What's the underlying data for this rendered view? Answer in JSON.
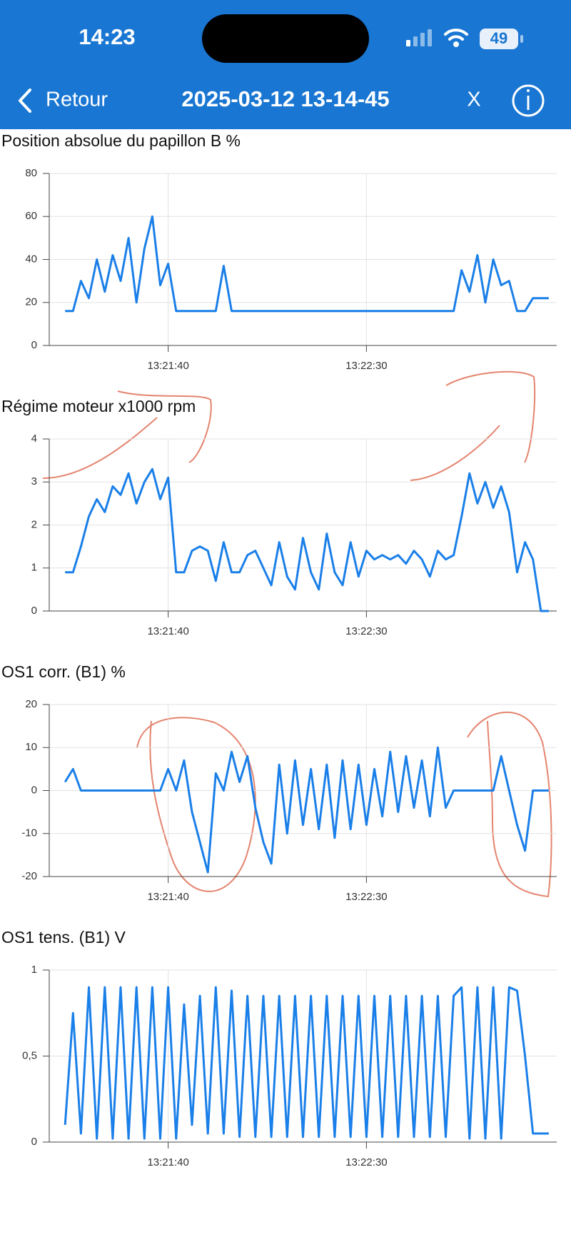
{
  "status_bar": {
    "time": "14:23",
    "battery": "49"
  },
  "nav": {
    "back": "Retour",
    "title": "2025-03-12 13-14-45",
    "close": "X"
  },
  "chart_data": [
    {
      "type": "line",
      "title": "Position absolue du papillon B  %",
      "color": "#1a7fe8",
      "x": [
        "13:21:14",
        "13:21:16",
        "13:21:18",
        "13:21:20",
        "13:21:22",
        "13:21:24",
        "13:21:26",
        "13:21:28",
        "13:21:30",
        "13:21:32",
        "13:21:34",
        "13:21:36",
        "13:21:38",
        "13:21:40",
        "13:21:42",
        "13:21:44",
        "13:21:46",
        "13:21:48",
        "13:21:50",
        "13:21:52",
        "13:21:54",
        "13:21:56",
        "13:21:58",
        "13:22:00",
        "13:22:02",
        "13:22:04",
        "13:22:06",
        "13:22:08",
        "13:22:10",
        "13:22:12",
        "13:22:14",
        "13:22:16",
        "13:22:18",
        "13:22:20",
        "13:22:22",
        "13:22:24",
        "13:22:26",
        "13:22:28",
        "13:22:30",
        "13:22:32",
        "13:22:34",
        "13:22:36",
        "13:22:38",
        "13:22:40",
        "13:22:42",
        "13:22:44",
        "13:22:46",
        "13:22:48",
        "13:22:50",
        "13:22:52",
        "13:22:54",
        "13:22:56",
        "13:22:58",
        "13:23:00",
        "13:23:02",
        "13:23:04",
        "13:23:06",
        "13:23:08",
        "13:23:10",
        "13:23:12",
        "13:23:14",
        "13:23:16"
      ],
      "values": [
        16,
        16,
        30,
        22,
        40,
        25,
        42,
        30,
        50,
        20,
        45,
        60,
        28,
        38,
        16,
        16,
        16,
        16,
        16,
        16,
        37,
        16,
        16,
        16,
        16,
        16,
        16,
        16,
        16,
        16,
        16,
        16,
        16,
        16,
        16,
        16,
        16,
        16,
        16,
        16,
        16,
        16,
        16,
        16,
        16,
        16,
        16,
        16,
        16,
        16,
        35,
        25,
        42,
        20,
        40,
        28,
        30,
        16,
        16,
        22,
        22,
        22
      ],
      "xlim": [
        "13:21:10",
        "13:23:18"
      ],
      "xticks": [
        "13:21:40",
        "13:22:30"
      ],
      "ylim": [
        0,
        80
      ],
      "yticks": [
        0,
        20,
        40,
        60,
        80
      ],
      "grid": true
    },
    {
      "type": "line",
      "title": "Régime moteur x1000  rpm",
      "color": "#1a7fe8",
      "x": [
        "13:21:14",
        "13:21:16",
        "13:21:18",
        "13:21:20",
        "13:21:22",
        "13:21:24",
        "13:21:26",
        "13:21:28",
        "13:21:30",
        "13:21:32",
        "13:21:34",
        "13:21:36",
        "13:21:38",
        "13:21:40",
        "13:21:42",
        "13:21:44",
        "13:21:46",
        "13:21:48",
        "13:21:50",
        "13:21:52",
        "13:21:54",
        "13:21:56",
        "13:21:58",
        "13:22:00",
        "13:22:02",
        "13:22:04",
        "13:22:06",
        "13:22:08",
        "13:22:10",
        "13:22:12",
        "13:22:14",
        "13:22:16",
        "13:22:18",
        "13:22:20",
        "13:22:22",
        "13:22:24",
        "13:22:26",
        "13:22:28",
        "13:22:30",
        "13:22:32",
        "13:22:34",
        "13:22:36",
        "13:22:38",
        "13:22:40",
        "13:22:42",
        "13:22:44",
        "13:22:46",
        "13:22:48",
        "13:22:50",
        "13:22:52",
        "13:22:54",
        "13:22:56",
        "13:22:58",
        "13:23:00",
        "13:23:02",
        "13:23:04",
        "13:23:06",
        "13:23:08",
        "13:23:10",
        "13:23:12",
        "13:23:14",
        "13:23:16"
      ],
      "values": [
        0.9,
        0.9,
        1.5,
        2.2,
        2.6,
        2.3,
        2.9,
        2.7,
        3.2,
        2.5,
        3.0,
        3.3,
        2.6,
        3.1,
        0.9,
        0.9,
        1.4,
        1.5,
        1.4,
        0.7,
        1.6,
        0.9,
        0.9,
        1.3,
        1.4,
        1.0,
        0.6,
        1.6,
        0.8,
        0.5,
        1.7,
        0.9,
        0.5,
        1.8,
        0.9,
        0.6,
        1.6,
        0.8,
        1.4,
        1.2,
        1.3,
        1.2,
        1.3,
        1.1,
        1.4,
        1.2,
        0.8,
        1.4,
        1.2,
        1.3,
        2.2,
        3.2,
        2.5,
        3.0,
        2.4,
        2.9,
        2.3,
        0.9,
        1.6,
        1.2,
        0,
        0
      ],
      "xlim": [
        "13:21:10",
        "13:23:18"
      ],
      "xticks": [
        "13:21:40",
        "13:22:30"
      ],
      "ylim": [
        0,
        4
      ],
      "yticks": [
        0,
        1,
        2,
        3,
        4
      ],
      "grid": true
    },
    {
      "type": "line",
      "title": "OS1 corr. (B1)  %",
      "color": "#1a7fe8",
      "x": [
        "13:21:14",
        "13:21:16",
        "13:21:18",
        "13:21:20",
        "13:21:22",
        "13:21:24",
        "13:21:26",
        "13:21:28",
        "13:21:30",
        "13:21:32",
        "13:21:34",
        "13:21:36",
        "13:21:38",
        "13:21:40",
        "13:21:42",
        "13:21:44",
        "13:21:46",
        "13:21:48",
        "13:21:50",
        "13:21:52",
        "13:21:54",
        "13:21:56",
        "13:21:58",
        "13:22:00",
        "13:22:02",
        "13:22:04",
        "13:22:06",
        "13:22:08",
        "13:22:10",
        "13:22:12",
        "13:22:14",
        "13:22:16",
        "13:22:18",
        "13:22:20",
        "13:22:22",
        "13:22:24",
        "13:22:26",
        "13:22:28",
        "13:22:30",
        "13:22:32",
        "13:22:34",
        "13:22:36",
        "13:22:38",
        "13:22:40",
        "13:22:42",
        "13:22:44",
        "13:22:46",
        "13:22:48",
        "13:22:50",
        "13:22:52",
        "13:22:54",
        "13:22:56",
        "13:22:58",
        "13:23:00",
        "13:23:02",
        "13:23:04",
        "13:23:06",
        "13:23:08",
        "13:23:10",
        "13:23:12",
        "13:23:14",
        "13:23:16"
      ],
      "values": [
        2,
        5,
        0,
        0,
        0,
        0,
        0,
        0,
        0,
        0,
        0,
        0,
        0,
        5,
        0,
        7,
        -5,
        -12,
        -19,
        4,
        0,
        9,
        2,
        8,
        -4,
        -12,
        -17,
        6,
        -10,
        7,
        -8,
        5,
        -9,
        6,
        -11,
        7,
        -9,
        6,
        -8,
        5,
        -6,
        9,
        -5,
        8,
        -4,
        7,
        -6,
        10,
        -4,
        0,
        0,
        0,
        0,
        0,
        0,
        8,
        0,
        -8,
        -14,
        0,
        0,
        0
      ],
      "xlim": [
        "13:21:10",
        "13:23:18"
      ],
      "xticks": [
        "13:21:40",
        "13:22:30"
      ],
      "ylim": [
        -20,
        20
      ],
      "yticks": [
        -20,
        -10,
        0,
        10,
        20
      ],
      "grid": true
    },
    {
      "type": "line",
      "title": "OS1 tens. (B1)  V",
      "color": "#1a7fe8",
      "x": [
        "13:21:14",
        "13:21:16",
        "13:21:18",
        "13:21:20",
        "13:21:22",
        "13:21:24",
        "13:21:26",
        "13:21:28",
        "13:21:30",
        "13:21:32",
        "13:21:34",
        "13:21:36",
        "13:21:38",
        "13:21:40",
        "13:21:42",
        "13:21:44",
        "13:21:46",
        "13:21:48",
        "13:21:50",
        "13:21:52",
        "13:21:54",
        "13:21:56",
        "13:21:58",
        "13:22:00",
        "13:22:02",
        "13:22:04",
        "13:22:06",
        "13:22:08",
        "13:22:10",
        "13:22:12",
        "13:22:14",
        "13:22:16",
        "13:22:18",
        "13:22:20",
        "13:22:22",
        "13:22:24",
        "13:22:26",
        "13:22:28",
        "13:22:30",
        "13:22:32",
        "13:22:34",
        "13:22:36",
        "13:22:38",
        "13:22:40",
        "13:22:42",
        "13:22:44",
        "13:22:46",
        "13:22:48",
        "13:22:50",
        "13:22:52",
        "13:22:54",
        "13:22:56",
        "13:22:58",
        "13:23:00",
        "13:23:02",
        "13:23:04",
        "13:23:06",
        "13:23:08",
        "13:23:10",
        "13:23:12",
        "13:23:14",
        "13:23:16"
      ],
      "values": [
        0.1,
        0.75,
        0.05,
        0.9,
        0.02,
        0.9,
        0.02,
        0.9,
        0.02,
        0.9,
        0.02,
        0.9,
        0.02,
        0.9,
        0.02,
        0.8,
        0.1,
        0.85,
        0.05,
        0.9,
        0.05,
        0.88,
        0.03,
        0.85,
        0.03,
        0.85,
        0.03,
        0.85,
        0.03,
        0.85,
        0.03,
        0.85,
        0.03,
        0.85,
        0.03,
        0.85,
        0.03,
        0.85,
        0.03,
        0.85,
        0.03,
        0.85,
        0.03,
        0.85,
        0.03,
        0.85,
        0.03,
        0.85,
        0.03,
        0.85,
        0.9,
        0.02,
        0.9,
        0.02,
        0.9,
        0.02,
        0.9,
        0.88,
        0.5,
        0.05,
        0.05,
        0.05
      ],
      "xlim": [
        "13:21:10",
        "13:23:18"
      ],
      "xticks": [
        "13:21:40",
        "13:22:30"
      ],
      "ylim": [
        0,
        1
      ],
      "yticks": [
        0,
        {
          "value": 0.5,
          "label": "0,5"
        },
        1
      ],
      "grid": true
    }
  ]
}
